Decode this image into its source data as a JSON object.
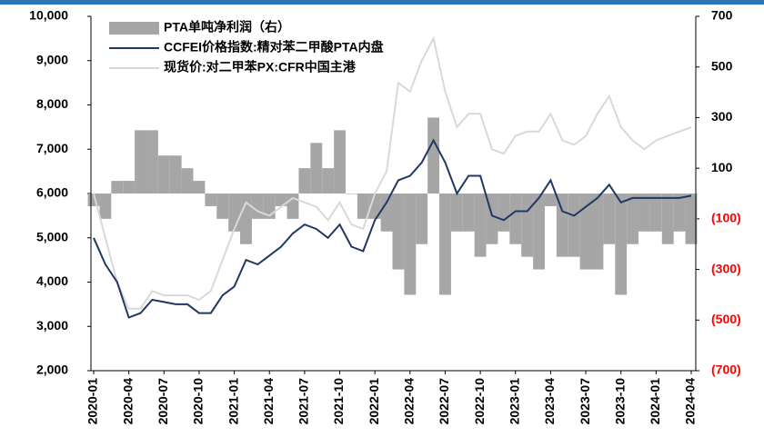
{
  "chart_data": {
    "type": "line",
    "categories": [
      "2020-01",
      null,
      null,
      "2020-04",
      null,
      null,
      "2020-07",
      null,
      null,
      "2020-10",
      null,
      null,
      "2021-01",
      null,
      null,
      "2021-04",
      null,
      null,
      "2021-07",
      null,
      null,
      "2021-10",
      null,
      null,
      "2022-01",
      null,
      null,
      "2022-04",
      null,
      null,
      "2022-07",
      null,
      null,
      "2022-10",
      null,
      null,
      "2023-01",
      null,
      null,
      "2023-04",
      null,
      null,
      "2023-07",
      null,
      null,
      "2023-10",
      null,
      null,
      "2024-01",
      null,
      null,
      "2024-04"
    ],
    "series": [
      {
        "name": "PTA单吨净利润（右）",
        "type": "bar",
        "axis": "y2",
        "color": "#a6a6a6",
        "values": [
          -50,
          -100,
          50,
          50,
          250,
          250,
          150,
          150,
          100,
          50,
          -50,
          -100,
          -150,
          -200,
          -100,
          -100,
          -50,
          -100,
          100,
          200,
          100,
          250,
          0,
          -100,
          -100,
          -150,
          -300,
          -400,
          -200,
          300,
          -400,
          -150,
          -150,
          -250,
          -200,
          -150,
          -200,
          -250,
          -300,
          -50,
          -250,
          -250,
          -300,
          -300,
          -200,
          -400,
          -200,
          -150,
          -150,
          -200,
          -150,
          -200
        ]
      },
      {
        "name": "CCFEI价格指数:精对苯二甲酸PTA内盘",
        "type": "line",
        "color": "#1f3864",
        "values": [
          5000,
          4400,
          4000,
          3200,
          3300,
          3600,
          3550,
          3500,
          3500,
          3300,
          3300,
          3700,
          3900,
          4500,
          4400,
          4600,
          4800,
          5100,
          5300,
          5200,
          5000,
          5300,
          4800,
          4700,
          5400,
          5800,
          6300,
          6400,
          6700,
          7200,
          6700,
          6000,
          6400,
          6400,
          5500,
          5400,
          5600,
          5600,
          5900,
          6300,
          5600,
          5500,
          5700,
          5900,
          6200,
          5800,
          5900,
          5900,
          5900,
          5900,
          5900,
          5950
        ]
      },
      {
        "name": "现货价:对二甲苯PX:CFR中国主港",
        "type": "line",
        "color": "#d9d9d9",
        "values": [
          6000,
          5000,
          4000,
          3400,
          3400,
          3800,
          3700,
          3700,
          3700,
          3600,
          3800,
          4500,
          5200,
          5800,
          5600,
          5500,
          5700,
          5900,
          5800,
          5700,
          5400,
          5800,
          5300,
          5200,
          6000,
          6500,
          8500,
          8300,
          9000,
          9500,
          8300,
          7500,
          7800,
          7800,
          7000,
          6900,
          7300,
          7400,
          7400,
          7800,
          7200,
          7100,
          7300,
          7800,
          8200,
          7500,
          7200,
          7000,
          7200,
          7300,
          7400,
          7500
        ]
      }
    ],
    "ylim": [
      2000,
      10000
    ],
    "yticks": [
      {
        "value": 2000,
        "label": "2,000"
      },
      {
        "value": 3000,
        "label": "3,000"
      },
      {
        "value": 4000,
        "label": "4,000"
      },
      {
        "value": 5000,
        "label": "5,000"
      },
      {
        "value": 6000,
        "label": "6,000"
      },
      {
        "value": 7000,
        "label": "7,000"
      },
      {
        "value": 8000,
        "label": "8,000"
      },
      {
        "value": 9000,
        "label": "9,000"
      },
      {
        "value": 10000,
        "label": "10,000"
      }
    ],
    "y2lim": [
      -700,
      700
    ],
    "y2ticks": [
      {
        "value": -700,
        "label": "(700)"
      },
      {
        "value": -500,
        "label": "(500)"
      },
      {
        "value": -300,
        "label": "(300)"
      },
      {
        "value": -100,
        "label": "(100)"
      },
      100,
      300,
      500,
      700
    ],
    "y2_negative_color": "#ff0000",
    "legend": "upper left"
  }
}
